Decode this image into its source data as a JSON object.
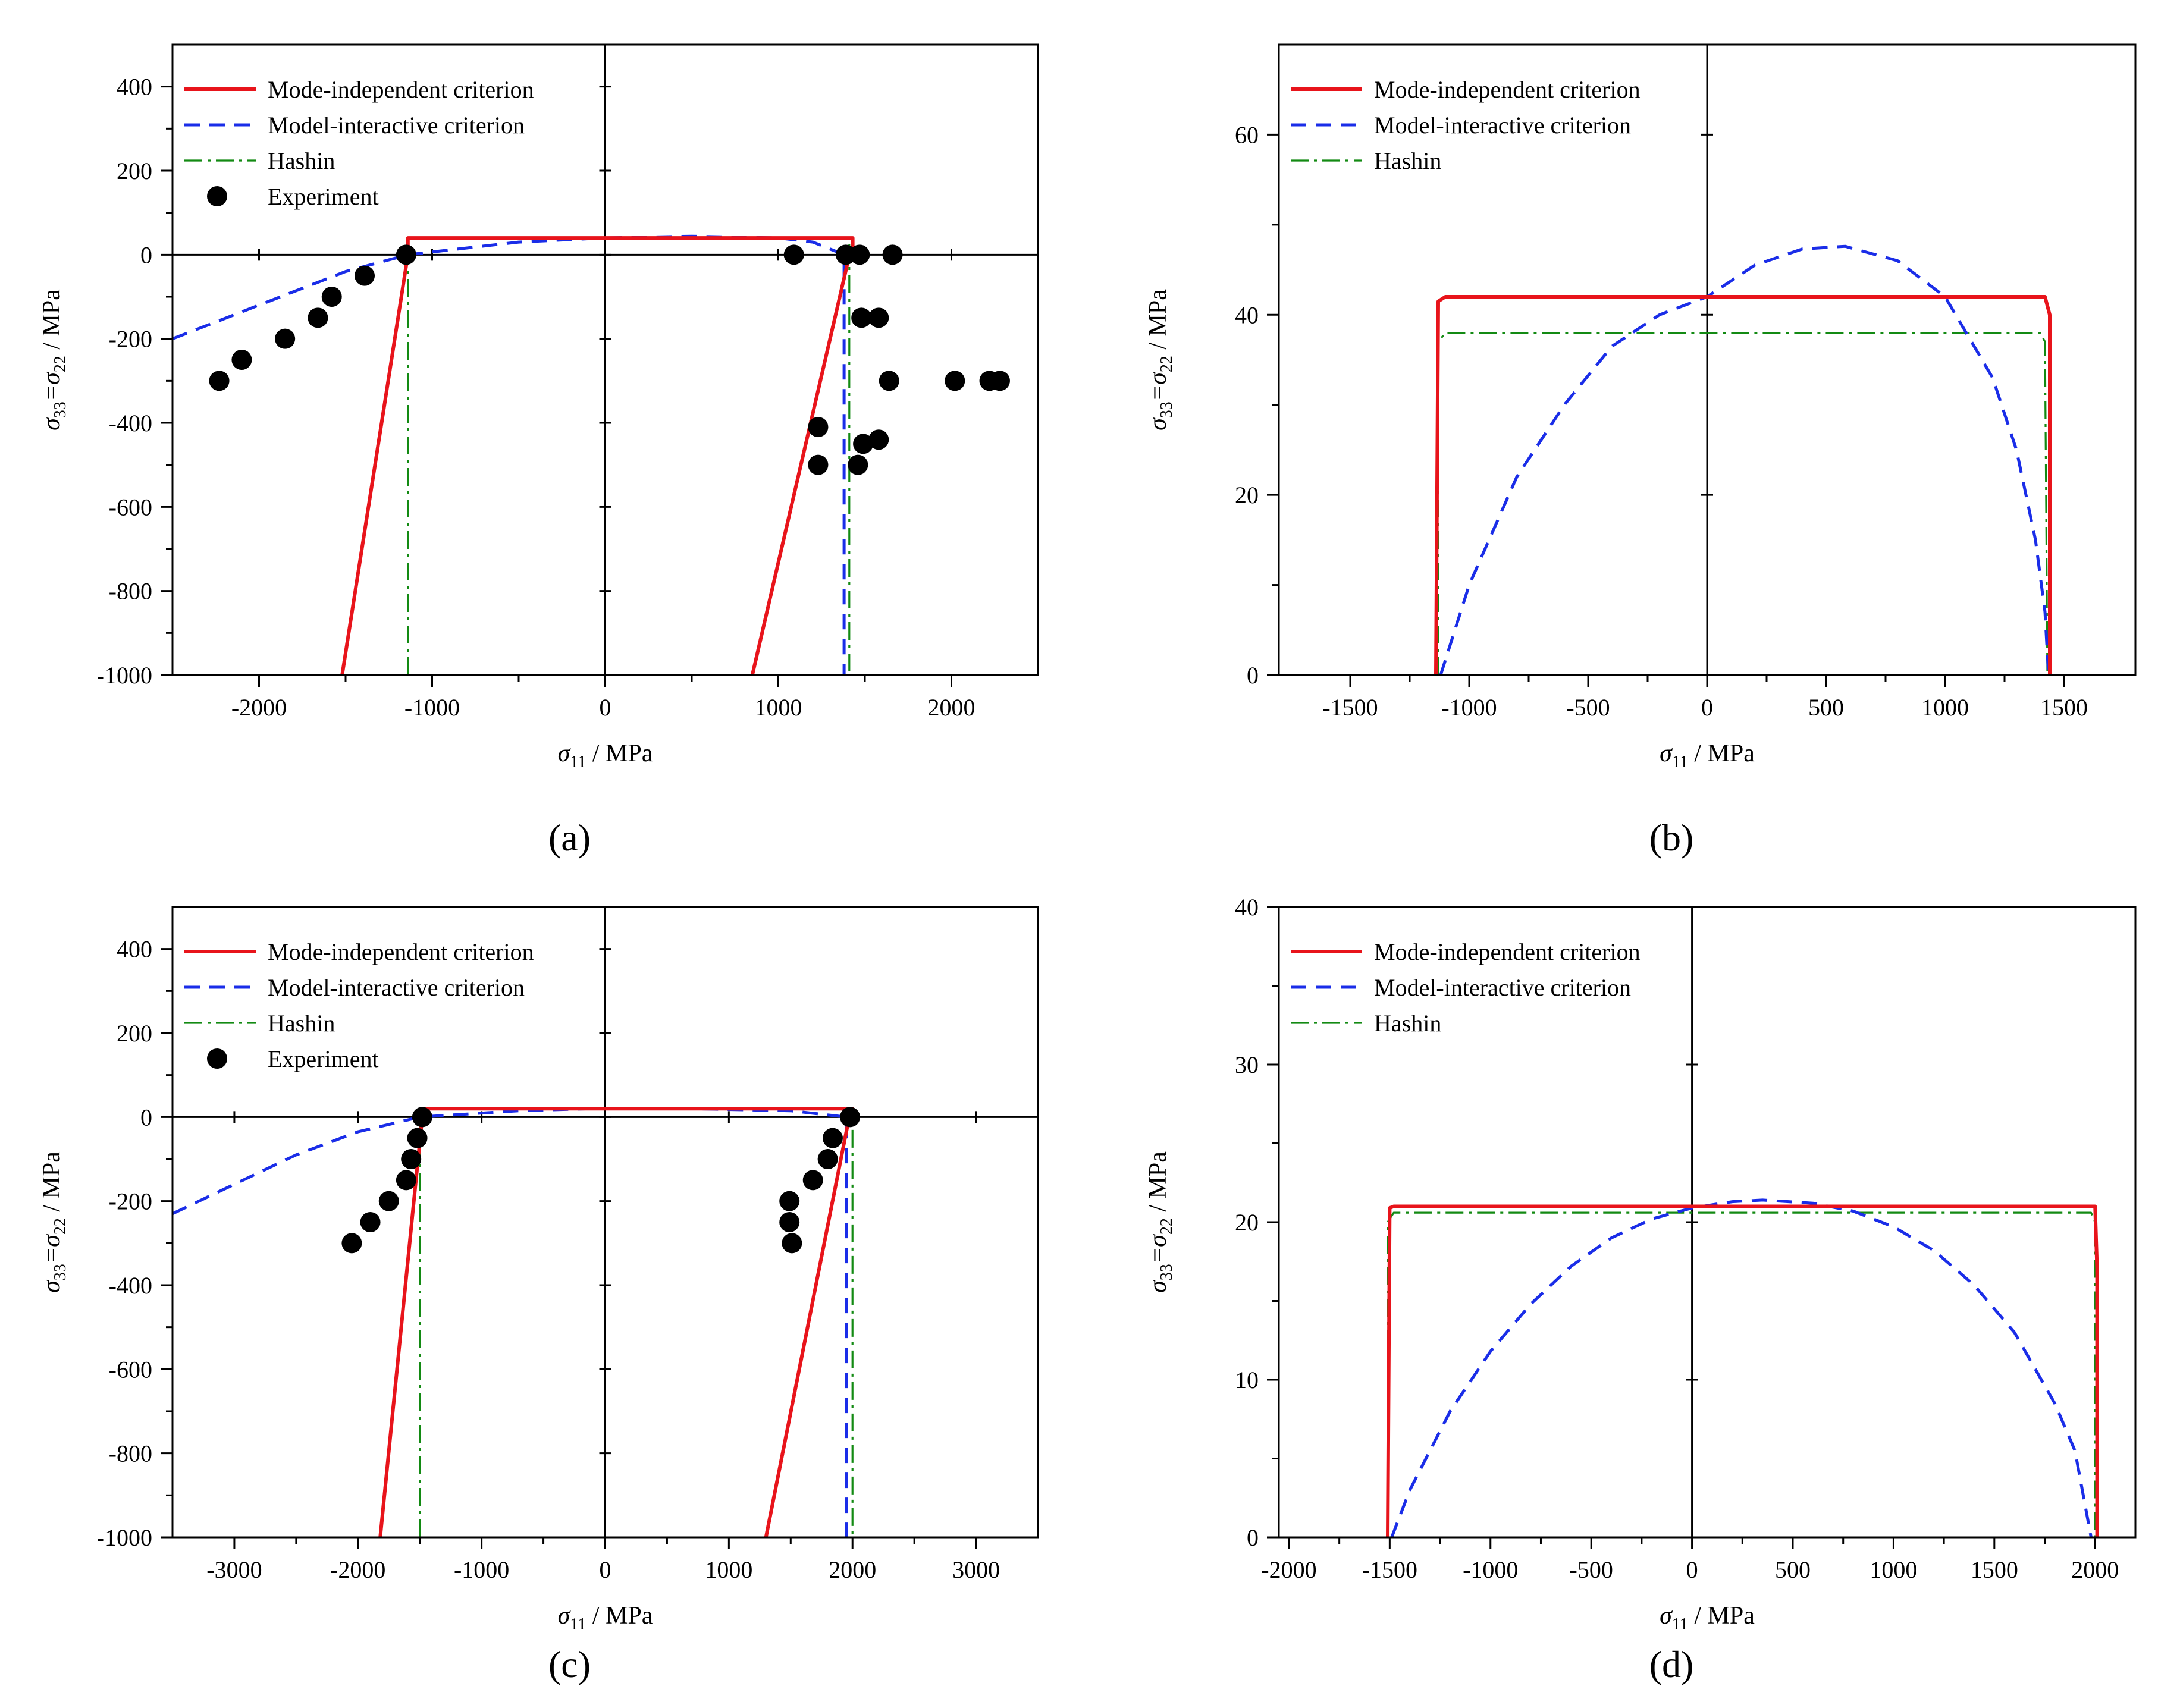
{
  "colors": {
    "mode_independent": "#e8141b",
    "model_interactive": "#1a2de8",
    "hashin": "#138a13",
    "experiment": "#000000",
    "axis": "#000000"
  },
  "legend_labels": [
    "Mode-independent criterion",
    "Model-interactive criterion",
    "Hashin",
    "Experiment"
  ],
  "chart_data": [
    {
      "id": "a",
      "type": "line",
      "panel_label": "(a)",
      "xlabel_symbol": "σ",
      "xlabel_sub": "11",
      "xlabel_unit": " / MPa",
      "ylabel_sym1": "σ",
      "ylabel_sub1": "33",
      "ylabel_mid": "=σ",
      "ylabel_sub2": "22",
      "ylabel_unit": " / MPa",
      "xlim": [
        -2500,
        2500
      ],
      "ylim": [
        -1000,
        500
      ],
      "xticks": [
        -2000,
        -1000,
        0,
        1000,
        2000
      ],
      "xtick_labels": [
        "-2000",
        "-1000",
        "0",
        "1000",
        "2000"
      ],
      "xminor": [
        -1500,
        -500,
        500,
        1500
      ],
      "yticks": [
        -1000,
        -800,
        -600,
        -400,
        -200,
        0,
        200,
        400
      ],
      "ytick_labels": [
        "-1000",
        "-800",
        "-600",
        "-400",
        "-200",
        "0",
        "200",
        "400"
      ],
      "yminor": [
        -900,
        -700,
        -500,
        -300,
        -100,
        100,
        300
      ],
      "legend": "top-left",
      "series": [
        {
          "name": "Mode-independent criterion",
          "style": "solid",
          "x": [
            -1520,
            -1140,
            -1140,
            1430,
            1430,
            1400,
            850
          ],
          "y": [
            -1000,
            0,
            40,
            40,
            0,
            -20,
            -1000
          ]
        },
        {
          "name": "Model-interactive criterion",
          "style": "dashed",
          "x": [
            -2500,
            -2000,
            -1500,
            -1140,
            -500,
            0,
            500,
            1000,
            1200,
            1380,
            1380
          ],
          "y": [
            -200,
            -120,
            -40,
            0,
            30,
            40,
            44,
            40,
            30,
            0,
            -1000
          ]
        },
        {
          "name": "Hashin",
          "style": "dashdot",
          "x": [
            -1140,
            -1140,
            1410,
            1410
          ],
          "y": [
            -1000,
            38,
            38,
            -1000
          ]
        },
        {
          "name": "Experiment",
          "style": "marker",
          "x": [
            -2230,
            -2100,
            -1850,
            -1660,
            -1580,
            -1390,
            -1150,
            1090,
            1390,
            1470,
            1660,
            1480,
            1580,
            1640,
            1230,
            1230,
            1490,
            1580,
            1460,
            2020,
            2220,
            2280
          ],
          "y": [
            -300,
            -250,
            -200,
            -150,
            -100,
            -50,
            0,
            0,
            0,
            0,
            0,
            -150,
            -150,
            -300,
            -410,
            -500,
            -450,
            -440,
            -500,
            -300,
            -300,
            -300
          ]
        }
      ]
    },
    {
      "id": "b",
      "type": "line",
      "panel_label": "(b)",
      "xlabel_symbol": "σ",
      "xlabel_sub": "11",
      "xlabel_unit": " / MPa",
      "ylabel_sym1": "σ",
      "ylabel_sub1": "33",
      "ylabel_mid": "=σ",
      "ylabel_sub2": "22",
      "ylabel_unit": " / MPa",
      "xlim": [
        -1800,
        1800
      ],
      "ylim": [
        0,
        70
      ],
      "xticks": [
        -1500,
        -1000,
        -500,
        0,
        500,
        1000,
        1500
      ],
      "xtick_labels": [
        "-1500",
        "-1000",
        "-500",
        "0",
        "500",
        "1000",
        "1500"
      ],
      "xminor": [
        -1250,
        -750,
        -250,
        250,
        750,
        1250
      ],
      "yticks": [
        0,
        20,
        40,
        60
      ],
      "ytick_labels": [
        "0",
        "20",
        "40",
        "60"
      ],
      "yminor": [
        10,
        30,
        50
      ],
      "legend": "top-left",
      "series": [
        {
          "name": "Mode-independent criterion",
          "style": "solid",
          "x": [
            -1140,
            -1130,
            -1100,
            1420,
            1440,
            1440
          ],
          "y": [
            0,
            41.5,
            42,
            42,
            40,
            0
          ]
        },
        {
          "name": "Model-interactive criterion",
          "style": "dashed",
          "x": [
            -1120,
            -1000,
            -800,
            -600,
            -400,
            -200,
            0,
            200,
            400,
            580,
            800,
            1000,
            1200,
            1300,
            1380,
            1420,
            1435
          ],
          "y": [
            0,
            10,
            22,
            30,
            36.5,
            40,
            42,
            45.5,
            47.3,
            47.6,
            46,
            42,
            33,
            25,
            15,
            7,
            0
          ]
        },
        {
          "name": "Hashin",
          "style": "dashdot",
          "x": [
            -1130,
            -1130,
            -1100,
            1400,
            1420,
            1430
          ],
          "y": [
            0,
            37,
            38,
            38,
            37,
            0
          ]
        }
      ]
    },
    {
      "id": "c",
      "type": "line",
      "panel_label": "(c)",
      "xlabel_symbol": "σ",
      "xlabel_sub": "11",
      "xlabel_unit": " / MPa",
      "ylabel_sym1": "σ",
      "ylabel_sub1": "33",
      "ylabel_mid": "=σ",
      "ylabel_sub2": "22",
      "ylabel_unit": " / MPa",
      "xlim": [
        -3500,
        3500
      ],
      "ylim": [
        -1000,
        500
      ],
      "xticks": [
        -3000,
        -2000,
        -1000,
        0,
        1000,
        2000,
        3000
      ],
      "xtick_labels": [
        "-3000",
        "-2000",
        "-1000",
        "0",
        "1000",
        "2000",
        "3000"
      ],
      "xminor": [
        -2500,
        -1500,
        -500,
        500,
        1500,
        2500
      ],
      "yticks": [
        -1000,
        -800,
        -600,
        -400,
        -200,
        0,
        200,
        400
      ],
      "ytick_labels": [
        "-1000",
        "-800",
        "-600",
        "-400",
        "-200",
        "0",
        "200",
        "400"
      ],
      "yminor": [
        -900,
        -700,
        -500,
        -300,
        -100,
        100,
        300
      ],
      "legend": "top-left",
      "series": [
        {
          "name": "Mode-independent criterion",
          "style": "solid",
          "x": [
            -1820,
            -1480,
            -1480,
            2000,
            2000,
            1960,
            1300
          ],
          "y": [
            -1000,
            0,
            20,
            20,
            0,
            -20,
            -1000
          ]
        },
        {
          "name": "Model-interactive criterion",
          "style": "dashed",
          "x": [
            -3500,
            -3000,
            -2500,
            -2000,
            -1500,
            -700,
            0,
            700,
            1500,
            1950,
            1950
          ],
          "y": [
            -230,
            -160,
            -90,
            -35,
            0,
            15,
            21,
            20,
            15,
            0,
            -1000
          ]
        },
        {
          "name": "Hashin",
          "style": "dashdot",
          "x": [
            -1500,
            -1500,
            2000,
            2000
          ],
          "y": [
            -1000,
            20,
            20,
            -1000
          ]
        },
        {
          "name": "Experiment",
          "style": "marker",
          "x": [
            -2050,
            -1900,
            -1750,
            -1610,
            -1570,
            -1520,
            -1480,
            1490,
            1490,
            1510,
            1680,
            1800,
            1840,
            1980
          ],
          "y": [
            -300,
            -250,
            -200,
            -150,
            -100,
            -50,
            0,
            -200,
            -250,
            -300,
            -150,
            -100,
            -50,
            0
          ]
        }
      ]
    },
    {
      "id": "d",
      "type": "line",
      "panel_label": "(d)",
      "xlabel_symbol": "σ",
      "xlabel_sub": "11",
      "xlabel_unit": " / MPa",
      "ylabel_sym1": "σ",
      "ylabel_sub1": "33",
      "ylabel_mid": "=σ",
      "ylabel_sub2": "22",
      "ylabel_unit": " / MPa",
      "xlim": [
        -2050,
        2200
      ],
      "ylim": [
        0,
        40
      ],
      "xticks": [
        -2000,
        -1500,
        -1000,
        -500,
        0,
        500,
        1000,
        1500,
        2000
      ],
      "xtick_labels": [
        "-2000",
        "-1500",
        "-1000",
        "-500",
        "0",
        "500",
        "1000",
        "1500",
        "2000"
      ],
      "xminor": [
        -1750,
        -1250,
        -750,
        -250,
        250,
        750,
        1250,
        1750
      ],
      "yticks": [
        0,
        10,
        20,
        30,
        40
      ],
      "ytick_labels": [
        "0",
        "10",
        "20",
        "30",
        "40"
      ],
      "yminor": [
        5,
        15,
        25,
        35
      ],
      "legend": "top-left",
      "series": [
        {
          "name": "Mode-independent criterion",
          "style": "solid",
          "x": [
            -1510,
            -1500,
            -1480,
            2000,
            2010,
            2010
          ],
          "y": [
            0,
            20.9,
            21,
            21,
            17,
            0
          ]
        },
        {
          "name": "Model-interactive criterion",
          "style": "dashed",
          "x": [
            -1490,
            -1400,
            -1200,
            -1000,
            -800,
            -600,
            -400,
            -200,
            0,
            200,
            350,
            600,
            800,
            1000,
            1200,
            1400,
            1600,
            1800,
            1900,
            1980
          ],
          "y": [
            0,
            3,
            8,
            11.8,
            14.8,
            17.2,
            19,
            20.2,
            20.9,
            21.3,
            21.4,
            21.2,
            20.7,
            19.7,
            18.2,
            16,
            13,
            8.5,
            5.5,
            0
          ]
        },
        {
          "name": "Hashin",
          "style": "dashdot",
          "x": [
            -1510,
            -1510,
            -1480,
            1980,
            2000,
            2000
          ],
          "y": [
            0,
            20,
            20.6,
            20.6,
            20,
            0
          ]
        }
      ]
    }
  ]
}
